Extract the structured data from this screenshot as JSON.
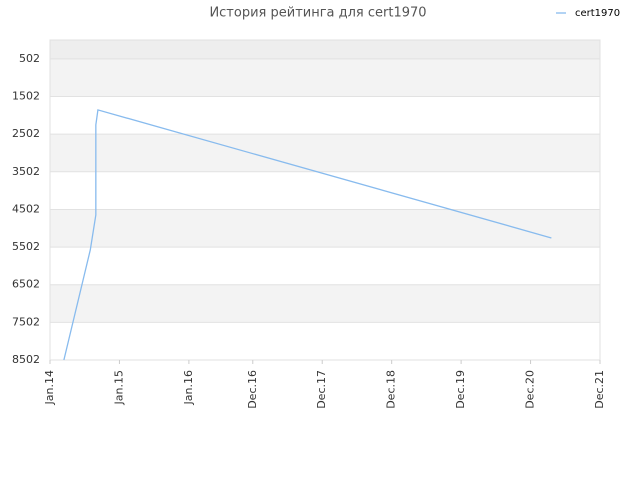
{
  "chart_data": {
    "type": "line",
    "title": "История рейтинга для cert1970",
    "x": [
      2014.2,
      2014.58,
      2014.66,
      2014.66,
      2014.69,
      2021.22
    ],
    "series": [
      {
        "name": "cert1970",
        "color": "#88bbee",
        "values": [
          8502,
          5578,
          4648,
          2256,
          1857,
          5259
        ]
      }
    ],
    "ylim": [
      8502,
      0
    ],
    "yticks": [
      502,
      1502,
      2502,
      3502,
      4502,
      5502,
      6502,
      7502,
      8502
    ],
    "xlim": [
      2014.0,
      2021.92
    ],
    "xticks": [
      {
        "value": 2014.0,
        "label": "Jan.14"
      },
      {
        "value": 2015.0,
        "label": "Jan.15"
      },
      {
        "value": 2016.0,
        "label": "Jan.16"
      },
      {
        "value": 2016.92,
        "label": "Dec.16"
      },
      {
        "value": 2017.92,
        "label": "Dec.17"
      },
      {
        "value": 2018.92,
        "label": "Dec.18"
      },
      {
        "value": 2019.92,
        "label": "Dec.19"
      },
      {
        "value": 2020.92,
        "label": "Dec.20"
      },
      {
        "value": 2021.92,
        "label": "Dec.21"
      }
    ],
    "grid": true,
    "legend": "top-right"
  }
}
